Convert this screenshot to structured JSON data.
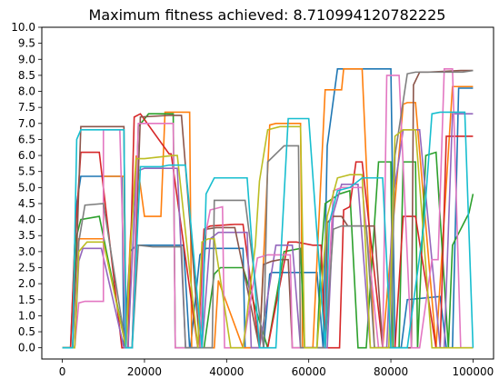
{
  "chart_data": {
    "type": "line",
    "title": "Maximum fitness achieved: 8.710994120782225",
    "xlabel": "",
    "ylabel": "",
    "xlim": [
      -5000,
      105000
    ],
    "ylim": [
      -0.35,
      10.0
    ],
    "xticks": [
      0,
      20000,
      40000,
      60000,
      80000,
      100000
    ],
    "xtick_labels": [
      "0",
      "20000",
      "40000",
      "60000",
      "80000",
      "100000"
    ],
    "yticks": [
      0.0,
      0.5,
      1.0,
      1.5,
      2.0,
      2.5,
      3.0,
      3.5,
      4.0,
      4.5,
      5.0,
      5.5,
      6.0,
      6.5,
      7.0,
      7.5,
      8.0,
      8.5,
      9.0,
      9.5,
      10.0
    ],
    "ytick_labels": [
      "0.0",
      "0.5",
      "1.0",
      "1.5",
      "2.0",
      "2.5",
      "3.0",
      "3.5",
      "4.0",
      "4.5",
      "5.0",
      "5.5",
      "6.0",
      "6.5",
      "7.0",
      "7.5",
      "8.0",
      "8.5",
      "9.0",
      "9.5",
      "10.0"
    ],
    "grid": false,
    "legend": "none",
    "colors": [
      "#1f77b4",
      "#ff7f0e",
      "#2ca02c",
      "#d62728",
      "#9467bd",
      "#8c564b",
      "#e377c2",
      "#7f7f7f",
      "#bcbd22",
      "#17becf"
    ],
    "series": [
      {
        "color": "#1f77b4",
        "x": [
          0,
          2000,
          3500,
          4500,
          10000,
          14500,
          15000,
          16500,
          18000,
          29500,
          31000,
          31200,
          33500,
          35000,
          44000,
          44500,
          49000,
          50500,
          51000,
          62000,
          63500,
          64500,
          67000,
          68000,
          80000,
          81000,
          82500,
          84000,
          92000,
          93500,
          95000,
          96500,
          100000
        ],
        "y": [
          0,
          0,
          4.5,
          5.35,
          5.35,
          5.35,
          0,
          3.0,
          3.2,
          3.2,
          0,
          0,
          2.9,
          3.1,
          3.1,
          0,
          0,
          2.3,
          2.35,
          2.35,
          0,
          6.3,
          8.7,
          8.7,
          8.7,
          0,
          0,
          1.5,
          1.6,
          0,
          0,
          8.1,
          8.1
        ]
      },
      {
        "color": "#ff7f0e",
        "x": [
          0,
          3000,
          4000,
          10000,
          10000,
          15000,
          15500,
          16500,
          18000,
          20000,
          24000,
          25000,
          31000,
          31500,
          37000,
          38000,
          44000,
          48000,
          50500,
          52000,
          58000,
          58500,
          61000,
          64000,
          68000,
          68500,
          70000,
          73000,
          76000,
          78000,
          83000,
          84000,
          86000,
          91000,
          95000,
          100000
        ],
        "y": [
          0,
          0,
          3.4,
          3.4,
          5.35,
          5.35,
          0,
          3.3,
          6.0,
          4.1,
          4.1,
          7.35,
          7.35,
          0,
          0,
          2.1,
          0,
          0,
          6.95,
          7.0,
          7.0,
          0,
          0,
          8.05,
          8.05,
          8.7,
          8.7,
          8.7,
          0,
          0,
          7.6,
          7.65,
          7.65,
          0,
          8.15,
          8.15
        ]
      },
      {
        "color": "#2ca02c",
        "x": [
          0,
          2500,
          3500,
          4500,
          9000,
          15500,
          17000,
          18500,
          21000,
          27000,
          27500,
          30000,
          34500,
          37000,
          38500,
          44000,
          50000,
          54000,
          58000,
          59000,
          62000,
          63000,
          64000,
          67500,
          70000,
          72000,
          74000,
          77000,
          80000,
          80500,
          82000,
          83000,
          86000,
          86500,
          88500,
          91000,
          94000,
          95000,
          99000,
          100000
        ],
        "y": [
          0,
          0,
          3.5,
          4.0,
          4.1,
          0,
          0,
          6.9,
          7.3,
          7.3,
          0,
          0,
          0,
          2.3,
          2.5,
          2.5,
          0,
          3.0,
          3.1,
          0,
          0,
          2.8,
          4.5,
          4.8,
          4.9,
          0,
          0,
          5.8,
          5.8,
          0,
          0,
          5.8,
          5.8,
          0,
          6.0,
          6.1,
          0,
          3.2,
          4.2,
          4.8
        ]
      },
      {
        "color": "#d62728",
        "x": [
          0,
          2000,
          3000,
          4500,
          7000,
          9000,
          14500,
          16000,
          17500,
          19000,
          26000,
          26500,
          33000,
          34500,
          36000,
          42000,
          43000,
          44000,
          48000,
          50000,
          55000,
          57000,
          61000,
          63000,
          64000,
          67500,
          68500,
          70000,
          71500,
          73000,
          78000,
          81000,
          83000,
          86000,
          91000,
          92000,
          93500,
          95000,
          100000
        ],
        "y": [
          0,
          0,
          3.2,
          6.1,
          6.1,
          6.1,
          0,
          0,
          7.2,
          7.3,
          6.05,
          6.05,
          0,
          3.7,
          3.8,
          3.85,
          3.85,
          3.85,
          0,
          0,
          3.3,
          3.3,
          3.2,
          3.2,
          0,
          0,
          4.3,
          4.4,
          5.8,
          5.8,
          0,
          0,
          4.1,
          4.1,
          0,
          0,
          6.6,
          6.6,
          6.6
        ]
      },
      {
        "color": "#9467bd",
        "x": [
          0,
          3000,
          4000,
          5000,
          9500,
          15000,
          16000,
          18000,
          20000,
          28000,
          30000,
          34000,
          36000,
          38000,
          45000,
          46000,
          48000,
          52000,
          56000,
          58000,
          60000,
          64500,
          66000,
          68000,
          72000,
          75000,
          79000,
          80500,
          82000,
          83000,
          87000,
          92000,
          93000,
          95000,
          100000
        ],
        "y": [
          0,
          0,
          2.7,
          3.1,
          3.1,
          0,
          0,
          5.5,
          5.6,
          5.6,
          0,
          0,
          3.4,
          3.6,
          3.6,
          0,
          0,
          3.2,
          3.2,
          0,
          0,
          0,
          4.2,
          5.1,
          5.1,
          0,
          0,
          4.7,
          5.9,
          6.8,
          6.8,
          0,
          0,
          7.3,
          7.3
        ]
      },
      {
        "color": "#8c564b",
        "x": [
          0,
          2500,
          3500,
          4500,
          10000,
          15000,
          15500,
          17000,
          19000,
          26000,
          29000,
          33500,
          35000,
          37500,
          42000,
          48000,
          49000,
          51000,
          53000,
          55000,
          56000,
          64000,
          64500,
          66000,
          68000,
          69500,
          76000,
          78000,
          85000,
          85500,
          87000,
          89000,
          97000,
          100000
        ],
        "y": [
          0,
          0,
          3.0,
          6.9,
          6.9,
          6.9,
          0,
          0,
          7.2,
          7.25,
          7.25,
          0,
          3.7,
          3.75,
          3.75,
          0,
          2.6,
          2.7,
          2.75,
          2.75,
          0,
          0,
          3.9,
          4.1,
          4.1,
          3.8,
          3.8,
          0,
          0,
          8.2,
          8.6,
          8.6,
          8.65,
          8.65
        ]
      },
      {
        "color": "#e377c2",
        "x": [
          0,
          3000,
          4000,
          5500,
          10000,
          10000,
          14000,
          15500,
          17000,
          18500,
          27000,
          27500,
          33500,
          34500,
          36000,
          39000,
          39500,
          44000,
          47500,
          50000,
          55500,
          56000,
          64000,
          66000,
          68000,
          73000,
          77000,
          78000,
          79000,
          82000,
          85000,
          87000,
          90000,
          91500,
          93000,
          95000,
          97000,
          100000
        ],
        "y": [
          0,
          0,
          1.4,
          1.45,
          1.45,
          6.8,
          6.8,
          0,
          0,
          7.0,
          7.0,
          0,
          0,
          3.3,
          4.3,
          4.4,
          0,
          0,
          2.8,
          2.9,
          2.9,
          0,
          0,
          4.9,
          5.0,
          5.0,
          0,
          0,
          8.5,
          8.5,
          0,
          0,
          2.75,
          2.75,
          8.7,
          8.7,
          0,
          0
        ]
      },
      {
        "color": "#7f7f7f",
        "x": [
          0,
          3000,
          4000,
          5500,
          10000,
          15500,
          17000,
          18500,
          22000,
          29000,
          30000,
          36500,
          37000,
          40000,
          44500,
          49000,
          50000,
          54000,
          57500,
          58000,
          64000,
          66000,
          68000,
          74000,
          76000,
          80000,
          81000,
          84000,
          86000,
          90500,
          97500,
          100000
        ],
        "y": [
          0,
          0,
          3.3,
          4.45,
          4.5,
          0,
          0,
          3.2,
          3.15,
          3.15,
          0,
          0,
          4.6,
          4.6,
          4.6,
          0,
          5.8,
          6.3,
          6.3,
          0,
          0,
          3.7,
          3.8,
          3.8,
          0,
          0,
          6.0,
          8.55,
          8.6,
          8.6,
          8.6,
          8.65
        ]
      },
      {
        "color": "#bcbd22",
        "x": [
          0,
          3000,
          4000,
          6000,
          8000,
          10000,
          15500,
          16500,
          18000,
          20000,
          27000,
          28000,
          33000,
          34000,
          35500,
          37000,
          41000,
          44000,
          47000,
          48000,
          50000,
          53000,
          58000,
          59000,
          62000,
          64500,
          67000,
          70000,
          73000,
          75000,
          79500,
          81000,
          83000,
          86000,
          90000,
          100000
        ],
        "y": [
          0,
          0,
          3.0,
          3.3,
          3.3,
          3.3,
          0,
          2.9,
          5.9,
          5.9,
          6.0,
          6.0,
          0,
          3.3,
          3.4,
          3.4,
          0,
          0,
          3.2,
          5.2,
          6.8,
          6.9,
          6.9,
          0,
          0,
          4.1,
          5.3,
          5.4,
          5.4,
          0,
          0,
          6.6,
          6.8,
          6.8,
          0,
          0
        ]
      },
      {
        "color": "#17becf",
        "x": [
          0,
          2500,
          3500,
          4500,
          7000,
          15000,
          15500,
          17000,
          19000,
          24000,
          26000,
          30000,
          34000,
          35000,
          37000,
          40000,
          45000,
          48000,
          52000,
          55000,
          60000,
          64000,
          65000,
          67000,
          70000,
          73000,
          78000,
          80000,
          82000,
          84000,
          88000,
          90000,
          92000,
          94000,
          98000,
          100000
        ],
        "y": [
          0,
          0,
          6.5,
          6.8,
          6.8,
          6.8,
          0,
          0,
          5.65,
          5.65,
          5.7,
          5.7,
          0,
          4.8,
          5.3,
          5.3,
          5.3,
          0,
          0,
          7.15,
          7.15,
          0,
          3.9,
          4.9,
          5.0,
          5.3,
          5.3,
          0,
          0,
          0,
          3.8,
          7.3,
          7.35,
          7.35,
          7.35,
          0
        ]
      }
    ]
  }
}
